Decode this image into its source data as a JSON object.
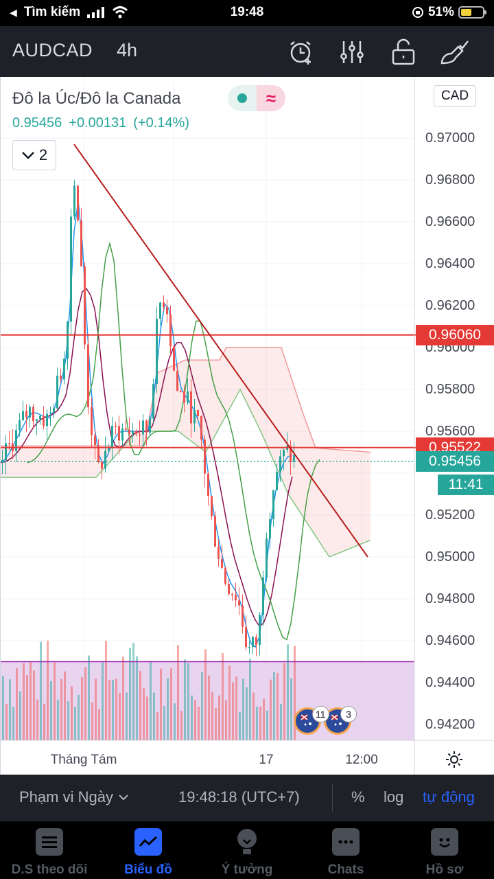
{
  "status_bar": {
    "back_label": "Tìm kiếm",
    "time": "19:48",
    "battery": "51%",
    "battery_level": 0.51
  },
  "header": {
    "symbol": "AUDCAD",
    "interval": "4h",
    "icons": [
      "alarm-add-icon",
      "indicators-icon",
      "unlock-icon",
      "drawing-tools-icon"
    ]
  },
  "legend": {
    "title": "Đô la Úc/Đô la Canada",
    "price": "0.95456",
    "change": "+0.00131",
    "change_pct": "(+0.14%)",
    "collapsed_count": "2"
  },
  "price_axis": {
    "currency": "CAD",
    "labels": [
      "0.97000",
      "0.96800",
      "0.96600",
      "0.96400",
      "0.96200",
      "0.96000",
      "0.95800",
      "0.95600",
      "0.95200",
      "0.95000",
      "0.94800",
      "0.94600",
      "0.94400",
      "0.94200"
    ],
    "tags": [
      {
        "value": "0.96060",
        "color": "#e53935"
      },
      {
        "value": "0.95522",
        "color": "#e53935"
      },
      {
        "value": "0.95456",
        "color": "#26a69a"
      }
    ],
    "countdown": "11:41"
  },
  "time_axis": {
    "labels": [
      "Tháng Tám",
      "17",
      "12:00"
    ]
  },
  "chart_data": {
    "type": "candlestick",
    "ylim": [
      0.9415,
      0.9715
    ],
    "current_price": 0.95456,
    "horizontal_lines": [
      0.9606,
      0.95522,
      0.945
    ],
    "trendline": {
      "from": 0.9697,
      "to": 0.95
    },
    "events": {
      "badge_counts": [
        "11",
        "3"
      ]
    }
  },
  "range_bar": {
    "range_label": "Phạm vi Ngày",
    "clock": "19:48:18 (UTC+7)",
    "options": [
      "%",
      "log",
      "tự động"
    ],
    "active_option": "tự động"
  },
  "tabs": [
    {
      "label": "D.S theo dõi",
      "icon": "watchlist-icon",
      "active": false
    },
    {
      "label": "Biểu đồ",
      "icon": "chart-icon",
      "active": true
    },
    {
      "label": "Ý tưởng",
      "icon": "ideas-icon",
      "active": false
    },
    {
      "label": "Chats",
      "icon": "chats-icon",
      "active": false
    },
    {
      "label": "Hồ sơ",
      "icon": "profile-icon",
      "active": false
    }
  ]
}
